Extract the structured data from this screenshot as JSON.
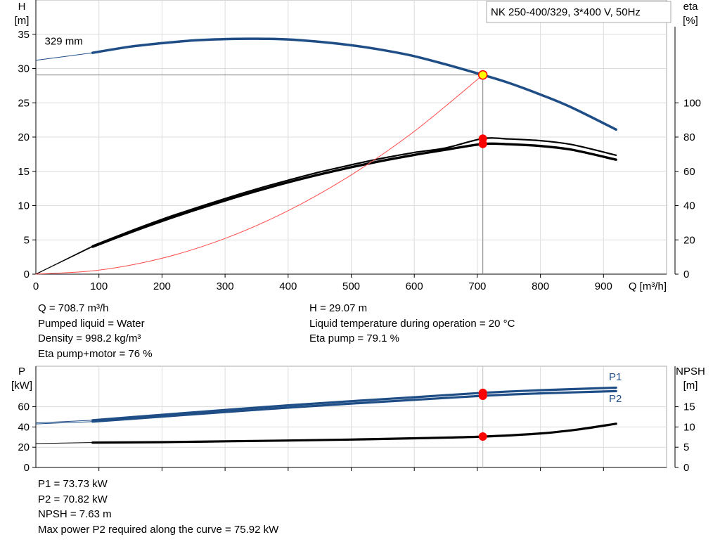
{
  "chart_data": [
    {
      "type": "line",
      "title": "NK 250-400/329, 3*400 V, 50Hz",
      "xlabel": "Q [m³/h]",
      "x_ticks": [
        0,
        100,
        200,
        300,
        400,
        500,
        600,
        700,
        800,
        900
      ],
      "xlim": [
        0,
        1000
      ],
      "ylabel_left": {
        "name": "H",
        "unit": "[m]"
      },
      "ylabel_right": {
        "name": "eta",
        "unit": "[%]"
      },
      "ylim_left": [
        0,
        40
      ],
      "y_ticks_left": [
        0,
        5,
        10,
        15,
        20,
        25,
        30,
        35
      ],
      "ylim_right": [
        0,
        160
      ],
      "y_ticks_right": [
        0,
        20,
        40,
        60,
        80,
        100
      ],
      "grid": true,
      "annotations": [
        {
          "text": "329 mm",
          "x": 14,
          "y": 33.5
        }
      ],
      "series": [
        {
          "name": "329 mm",
          "axis": "left",
          "color": "#1f4e87",
          "role": "head",
          "points": [
            [
              90,
              32.3
            ],
            [
              150,
              33.2
            ],
            [
              200,
              33.7
            ],
            [
              250,
              34.1
            ],
            [
              300,
              34.3
            ],
            [
              350,
              34.35
            ],
            [
              400,
              34.25
            ],
            [
              450,
              33.9
            ],
            [
              500,
              33.4
            ],
            [
              550,
              32.7
            ],
            [
              600,
              31.8
            ],
            [
              650,
              30.6
            ],
            [
              708.7,
              29.07
            ],
            [
              750,
              27.9
            ],
            [
              800,
              26.2
            ],
            [
              850,
              24.3
            ],
            [
              920,
              21.1
            ]
          ],
          "extrapolation": [
            [
              0,
              31.2
            ],
            [
              90,
              32.3
            ]
          ]
        },
        {
          "axis": "right",
          "color": "#000000",
          "role": "eta-pump",
          "points": [
            [
              90,
              16.5
            ],
            [
              150,
              25.2
            ],
            [
              200,
              32.0
            ],
            [
              250,
              38.2
            ],
            [
              300,
              44.1
            ],
            [
              350,
              49.7
            ],
            [
              400,
              54.8
            ],
            [
              450,
              59.6
            ],
            [
              500,
              63.8
            ],
            [
              550,
              67.7
            ],
            [
              600,
              71.0
            ],
            [
              650,
              73.7
            ],
            [
              708.7,
              79.1
            ],
            [
              750,
              78.9
            ],
            [
              800,
              77.9
            ],
            [
              850,
              75.6
            ],
            [
              920,
              69.4
            ]
          ],
          "extrapolation": [
            [
              0,
              0
            ],
            [
              90,
              16.5
            ]
          ]
        },
        {
          "axis": "right",
          "color": "#000000",
          "role": "eta-pump-motor",
          "points": [
            [
              90,
              16.0
            ],
            [
              150,
              24.4
            ],
            [
              200,
              31.0
            ],
            [
              250,
              37.2
            ],
            [
              300,
              43.0
            ],
            [
              350,
              48.5
            ],
            [
              400,
              53.6
            ],
            [
              450,
              58.2
            ],
            [
              500,
              62.4
            ],
            [
              550,
              66.2
            ],
            [
              600,
              69.6
            ],
            [
              650,
              72.6
            ],
            [
              708.7,
              76.0
            ],
            [
              750,
              75.8
            ],
            [
              800,
              74.8
            ],
            [
              850,
              72.6
            ],
            [
              920,
              66.8
            ]
          ],
          "extrapolation": [
            [
              0,
              0
            ],
            [
              90,
              16.0
            ]
          ]
        },
        {
          "axis": "left",
          "color": "#ff4a4a",
          "role": "system-curve",
          "points": [
            [
              0,
              0
            ],
            [
              100,
              0.58
            ],
            [
              200,
              2.32
            ],
            [
              300,
              5.21
            ],
            [
              400,
              9.26
            ],
            [
              500,
              14.47
            ],
            [
              600,
              20.83
            ],
            [
              708.7,
              29.07
            ]
          ]
        }
      ],
      "operating_point": {
        "x": 708.7,
        "y": 29.07
      },
      "eta_points": [
        {
          "x": 708.7,
          "eta": 79.1
        },
        {
          "x": 708.7,
          "eta": 76
        }
      ]
    },
    {
      "type": "line",
      "ylabel_left": {
        "name": "P",
        "unit": "[kW]"
      },
      "ylabel_right": {
        "name": "NPSH",
        "unit": "[m]"
      },
      "xlim": [
        0,
        1000
      ],
      "ylim_left": [
        0,
        100
      ],
      "y_ticks_left": [
        0,
        20,
        40,
        60
      ],
      "ylim_right": [
        0,
        25
      ],
      "y_ticks_right": [
        0,
        5,
        10,
        15
      ],
      "grid": true,
      "series": [
        {
          "name": "P1",
          "axis": "left",
          "color": "#1f4e87",
          "points": [
            [
              90,
              46.7
            ],
            [
              200,
              52.0
            ],
            [
              300,
              56.8
            ],
            [
              400,
              61.4
            ],
            [
              500,
              65.5
            ],
            [
              600,
              69.4
            ],
            [
              708.7,
              73.73
            ],
            [
              800,
              76.3
            ],
            [
              920,
              78.8
            ]
          ],
          "extrapolation": [
            [
              0,
              44.0
            ],
            [
              90,
              46.7
            ]
          ]
        },
        {
          "name": "P2",
          "axis": "left",
          "color": "#1f4e87",
          "points": [
            [
              90,
              45.3
            ],
            [
              200,
              50.2
            ],
            [
              300,
              54.8
            ],
            [
              400,
              59.1
            ],
            [
              500,
              63.1
            ],
            [
              600,
              66.8
            ],
            [
              708.7,
              70.82
            ],
            [
              800,
              73.2
            ],
            [
              920,
              75.4
            ]
          ],
          "extrapolation": [
            [
              0,
              43.0
            ],
            [
              90,
              45.3
            ]
          ]
        },
        {
          "name": "NPSH",
          "axis": "right",
          "color": "#000000",
          "points": [
            [
              90,
              6.15
            ],
            [
              200,
              6.25
            ],
            [
              300,
              6.45
            ],
            [
              400,
              6.65
            ],
            [
              500,
              6.9
            ],
            [
              600,
              7.2
            ],
            [
              708.7,
              7.63
            ],
            [
              800,
              8.4
            ],
            [
              860,
              9.4
            ],
            [
              920,
              10.8
            ]
          ],
          "extrapolation": [
            [
              0,
              5.9
            ],
            [
              90,
              6.15
            ]
          ]
        }
      ],
      "operating_markers": [
        {
          "axis": "left",
          "x": 708.7,
          "y": 73.73
        },
        {
          "axis": "left",
          "x": 708.7,
          "y": 70.82
        },
        {
          "axis": "right",
          "x": 708.7,
          "y": 7.63
        }
      ]
    }
  ],
  "info_top": {
    "left": [
      "Q = 708.7 m³/h",
      "Pumped liquid = Water",
      "Density = 998.2 kg/m³",
      "Eta pump+motor = 76 %"
    ],
    "right": [
      "H = 29.07 m",
      "Liquid temperature during operation = 20 °C",
      "Eta pump = 79.1 %"
    ]
  },
  "info_bottom": [
    "P1 = 73.73 kW",
    "P2 = 70.82 kW",
    "NPSH = 7.63 m",
    "Max power P2 required along the curve = 75.92 kW"
  ],
  "colors": {
    "head": "#1f4e87",
    "power": "#1f4e87",
    "eta": "#000000",
    "system": "#ff4a4a",
    "marker": "#ff0000",
    "op_marker": "#ffff00"
  }
}
